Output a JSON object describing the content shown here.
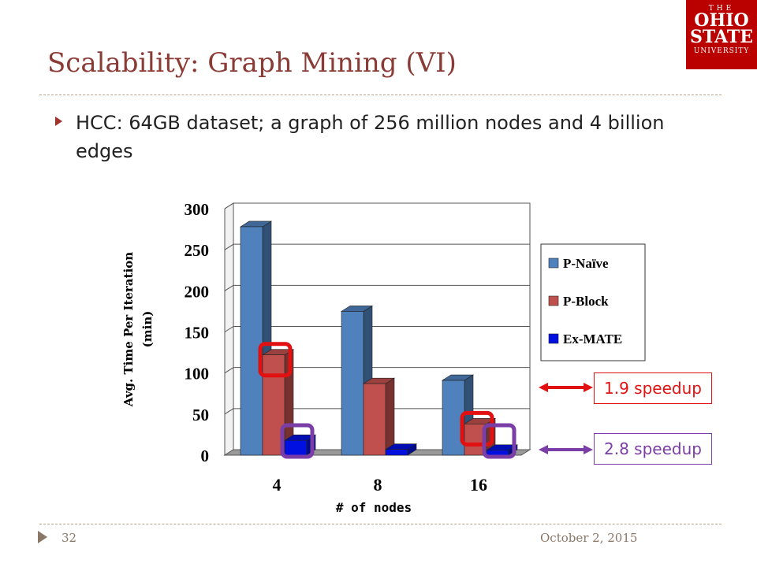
{
  "slide": {
    "title": "Scalability: Graph Mining (VI)",
    "bullet": "HCC: 64GB dataset; a graph of 256 million nodes and 4 billion edges",
    "page_number": "32",
    "date": "October 2, 2015"
  },
  "logo": {
    "the": "THE",
    "ohio": "OHIO",
    "state": "STATE",
    "university": "UNIVERSITY"
  },
  "callouts": {
    "red": "1.9 speedup",
    "purple": "2.8 speedup"
  },
  "colors": {
    "p_naive": "#4f81bd",
    "p_block": "#c0504d",
    "ex_mate": "#0010e0",
    "highlight_red": "#e21111",
    "highlight_purple": "#7a3ea6"
  },
  "chart_data": {
    "type": "bar",
    "categories": [
      "4",
      "8",
      "16"
    ],
    "series": [
      {
        "name": "P-Naïve",
        "values": [
          278,
          175,
          91
        ]
      },
      {
        "name": "P-Block",
        "values": [
          122,
          87,
          38
        ]
      },
      {
        "name": "Ex-MATE",
        "values": [
          18,
          7,
          6
        ]
      }
    ],
    "xlabel": "# of nodes",
    "ylabel": "Avg. Time Per Iteration (min)",
    "ylim": [
      0,
      300
    ],
    "yticks": [
      0,
      50,
      100,
      150,
      200,
      250,
      300
    ],
    "grid": true,
    "legend": "right"
  }
}
